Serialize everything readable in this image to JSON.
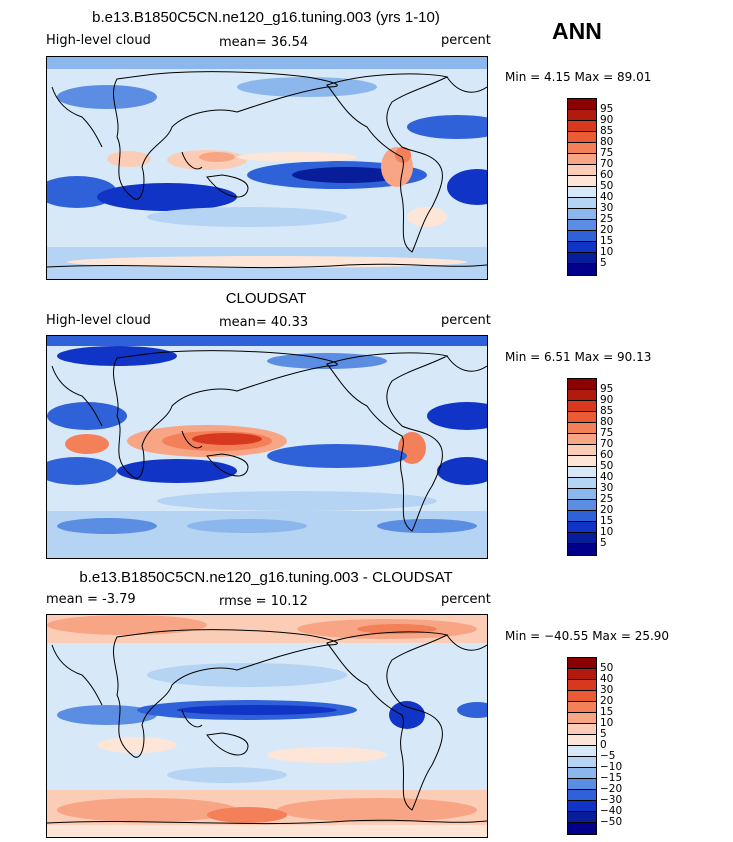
{
  "season": "ANN",
  "units": "percent",
  "panels": [
    {
      "title": "b.e13.B1850C5CN.ne120_g16.tuning.003 (yrs 1-10)",
      "left_label": "High-level cloud",
      "center_label": "mean=  36.54",
      "right_label": "percent",
      "min_max": "Min =    4.15  Max =   89.01",
      "colorbar_labels": [
        "95",
        "90",
        "85",
        "80",
        "75",
        "70",
        "60",
        "50",
        "40",
        "30",
        "25",
        "20",
        "15",
        "10",
        "5"
      ],
      "colorbar_colors": [
        "#8b0000",
        "#b11a0c",
        "#d8391e",
        "#ea5a35",
        "#f4805a",
        "#f8a585",
        "#fbcdb6",
        "#fde6d8",
        "#d7e9f8",
        "#b5d3f3",
        "#8cb7ec",
        "#5b8de3",
        "#2f62d8",
        "#1034c6",
        "#081d99",
        "#00008b"
      ]
    },
    {
      "title": "CLOUDSAT",
      "left_label": "High-level cloud",
      "center_label": "mean=  40.33",
      "right_label": "percent",
      "min_max": "Min =    6.51  Max =   90.13",
      "colorbar_labels": [
        "95",
        "90",
        "85",
        "80",
        "75",
        "70",
        "60",
        "50",
        "40",
        "30",
        "25",
        "20",
        "15",
        "10",
        "5"
      ],
      "colorbar_colors": [
        "#8b0000",
        "#b11a0c",
        "#d8391e",
        "#ea5a35",
        "#f4805a",
        "#f8a585",
        "#fbcdb6",
        "#fde6d8",
        "#d7e9f8",
        "#b5d3f3",
        "#8cb7ec",
        "#5b8de3",
        "#2f62d8",
        "#1034c6",
        "#081d99",
        "#00008b"
      ]
    },
    {
      "title": "b.e13.B1850C5CN.ne120_g16.tuning.003 - CLOUDSAT",
      "left_label": "mean =   -3.79",
      "center_label": "rmse =   10.12",
      "right_label": "percent",
      "min_max": "Min = −40.55  Max =   25.90",
      "colorbar_labels": [
        "50",
        "40",
        "30",
        "20",
        "15",
        "10",
        "5",
        "0",
        "−5",
        "−10",
        "−15",
        "−20",
        "−30",
        "−40",
        "−50"
      ],
      "colorbar_colors": [
        "#8b0000",
        "#b11a0c",
        "#d8391e",
        "#ea5a35",
        "#f4805a",
        "#f8a585",
        "#fbcdb6",
        "#fde6d8",
        "#d7e9f8",
        "#b5d3f3",
        "#8cb7ec",
        "#5b8de3",
        "#2f62d8",
        "#1034c6",
        "#081d99",
        "#00008b"
      ]
    }
  ]
}
